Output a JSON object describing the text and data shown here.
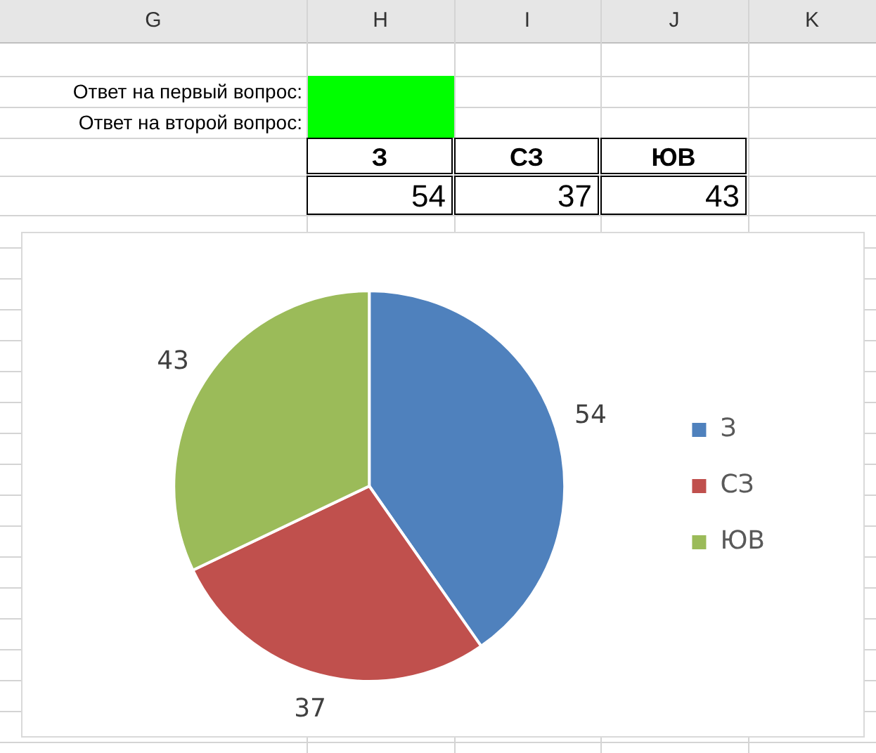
{
  "chart_data": [
    {
      "type": "other",
      "annotations": [
        "G",
        "H",
        "I",
        "J",
        "K",
        "Ответ на первый вопрос:",
        "Ответ на второй вопрос:",
        "З",
        "СЗ",
        "ЮВ",
        "54",
        "37",
        "43"
      ]
    },
    {
      "type": "pie",
      "categories": [
        "З",
        "СЗ",
        "ЮВ"
      ],
      "values": [
        54,
        37,
        43
      ],
      "colors": [
        "#4f81bd",
        "#c0504d",
        "#9bbb59"
      ],
      "legend": "right",
      "data_labels": true
    }
  ]
}
